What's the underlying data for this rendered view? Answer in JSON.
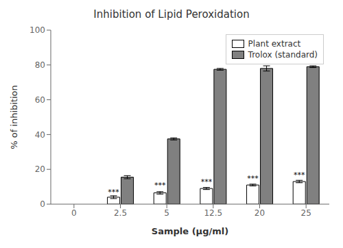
{
  "chart_data": {
    "type": "bar",
    "title": "Inhibition of Lipid Peroxidation",
    "x_label": "Sample (μg/ml)",
    "y_label": "% of inhibition",
    "categories": [
      "0",
      "2.5",
      "5",
      "12.5",
      "20",
      "25"
    ],
    "series": [
      {
        "name": "Plant extract",
        "color": "#ffffff",
        "values": [
          null,
          4.0,
          6.5,
          9.0,
          11.0,
          13.0
        ],
        "errors": [
          null,
          0.8,
          0.7,
          0.6,
          0.5,
          0.7
        ]
      },
      {
        "name": "Trolox (standard)",
        "color": "#808080",
        "values": [
          null,
          15.5,
          37.5,
          77.5,
          78.0,
          79.0
        ],
        "errors": [
          null,
          0.9,
          0.6,
          0.5,
          1.5,
          0.5
        ]
      }
    ],
    "annotations": [
      {
        "text": "***",
        "category": "2.5",
        "series": "Plant extract"
      },
      {
        "text": "***",
        "category": "5",
        "series": "Plant extract"
      },
      {
        "text": "***",
        "category": "12.5",
        "series": "Plant extract"
      },
      {
        "text": "***",
        "category": "20",
        "series": "Plant extract"
      },
      {
        "text": "***",
        "category": "25",
        "series": "Plant extract"
      }
    ],
    "ylim": [
      0,
      100
    ],
    "yticks": [
      0,
      20,
      40,
      60,
      80,
      100
    ],
    "grid": false,
    "legend": "upper right"
  }
}
